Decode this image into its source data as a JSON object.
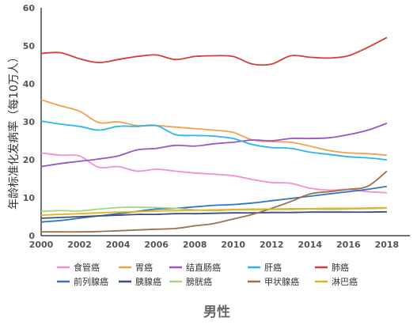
{
  "chart_data": {
    "type": "line",
    "caption": "男性",
    "ylabel": "年龄标准化发病率（每10万人）",
    "xlim": [
      2000,
      2019.2
    ],
    "ylim": [
      0,
      60
    ],
    "x_ticks": [
      2000,
      2002,
      2004,
      2006,
      2008,
      2010,
      2012,
      2014,
      2016,
      2018
    ],
    "y_ticks": [
      0,
      10,
      20,
      30,
      40,
      50,
      60
    ],
    "grid": false,
    "legend_position": "bottom",
    "x": [
      2000,
      2001,
      2002,
      2003,
      2004,
      2005,
      2006,
      2007,
      2008,
      2009,
      2010,
      2011,
      2012,
      2013,
      2014,
      2015,
      2016,
      2017,
      2018
    ],
    "series": [
      {
        "name": "食管癌",
        "color": "#f58fd0",
        "values": [
          21.8,
          21.2,
          21.0,
          18.0,
          18.2,
          17.0,
          17.5,
          17.0,
          16.5,
          16.2,
          15.8,
          14.8,
          14.0,
          13.8,
          12.5,
          12.0,
          12.2,
          11.6,
          11.3
        ]
      },
      {
        "name": "胃癌",
        "color": "#f0a24a",
        "values": [
          35.8,
          34.2,
          32.8,
          29.8,
          30.0,
          29.0,
          29.0,
          28.6,
          28.2,
          27.8,
          27.2,
          25.2,
          24.8,
          24.6,
          23.6,
          22.4,
          21.8,
          21.6,
          21.2
        ]
      },
      {
        "name": "结直肠癌",
        "color": "#9a56c6",
        "values": [
          18.2,
          19.0,
          19.6,
          20.2,
          21.0,
          22.6,
          23.0,
          23.8,
          23.6,
          24.2,
          24.6,
          25.2,
          25.0,
          25.6,
          25.6,
          25.8,
          26.6,
          27.8,
          29.6
        ]
      },
      {
        "name": "肝癌",
        "color": "#29b6f0",
        "values": [
          30.2,
          29.4,
          28.8,
          27.8,
          28.8,
          28.8,
          29.0,
          26.6,
          26.4,
          26.2,
          25.6,
          24.0,
          23.2,
          23.0,
          22.0,
          21.4,
          20.8,
          20.5,
          20.0
        ]
      },
      {
        "name": "肺癌",
        "color": "#d63c38",
        "values": [
          48.0,
          48.2,
          46.6,
          45.6,
          46.4,
          47.2,
          47.6,
          46.4,
          47.2,
          47.4,
          47.2,
          45.2,
          45.2,
          47.4,
          47.0,
          46.8,
          47.4,
          49.6,
          52.2
        ]
      },
      {
        "name": "前列腺癌",
        "color": "#2e76c4",
        "values": [
          3.6,
          4.0,
          4.6,
          5.2,
          5.8,
          6.4,
          7.0,
          7.2,
          7.6,
          8.0,
          8.2,
          8.6,
          9.2,
          9.8,
          10.4,
          11.0,
          11.6,
          12.2,
          13.0
        ]
      },
      {
        "name": "胰腺癌",
        "color": "#3c4e82",
        "values": [
          4.6,
          4.8,
          5.0,
          5.2,
          5.4,
          5.6,
          5.6,
          5.8,
          5.8,
          5.9,
          6.0,
          6.0,
          6.1,
          6.1,
          6.2,
          6.2,
          6.2,
          6.2,
          6.3
        ]
      },
      {
        "name": "膀胱癌",
        "color": "#a8d47c",
        "values": [
          6.4,
          6.6,
          6.5,
          7.0,
          7.4,
          7.5,
          7.4,
          7.2,
          6.8,
          6.6,
          6.8,
          6.8,
          6.9,
          6.9,
          7.0,
          6.9,
          7.0,
          7.1,
          7.2
        ]
      },
      {
        "name": "甲状腺癌",
        "color": "#a07048",
        "values": [
          1.0,
          1.0,
          1.0,
          1.1,
          1.3,
          1.5,
          1.7,
          1.9,
          2.6,
          3.2,
          4.4,
          5.6,
          7.2,
          9.0,
          11.0,
          11.6,
          12.2,
          13.0,
          17.0
        ]
      },
      {
        "name": "淋巴癌",
        "color": "#e8b020",
        "values": [
          5.4,
          5.6,
          5.8,
          6.0,
          6.2,
          6.3,
          6.5,
          6.6,
          6.7,
          6.8,
          6.9,
          7.0,
          7.0,
          7.1,
          7.1,
          7.2,
          7.2,
          7.3,
          7.4
        ]
      }
    ]
  }
}
